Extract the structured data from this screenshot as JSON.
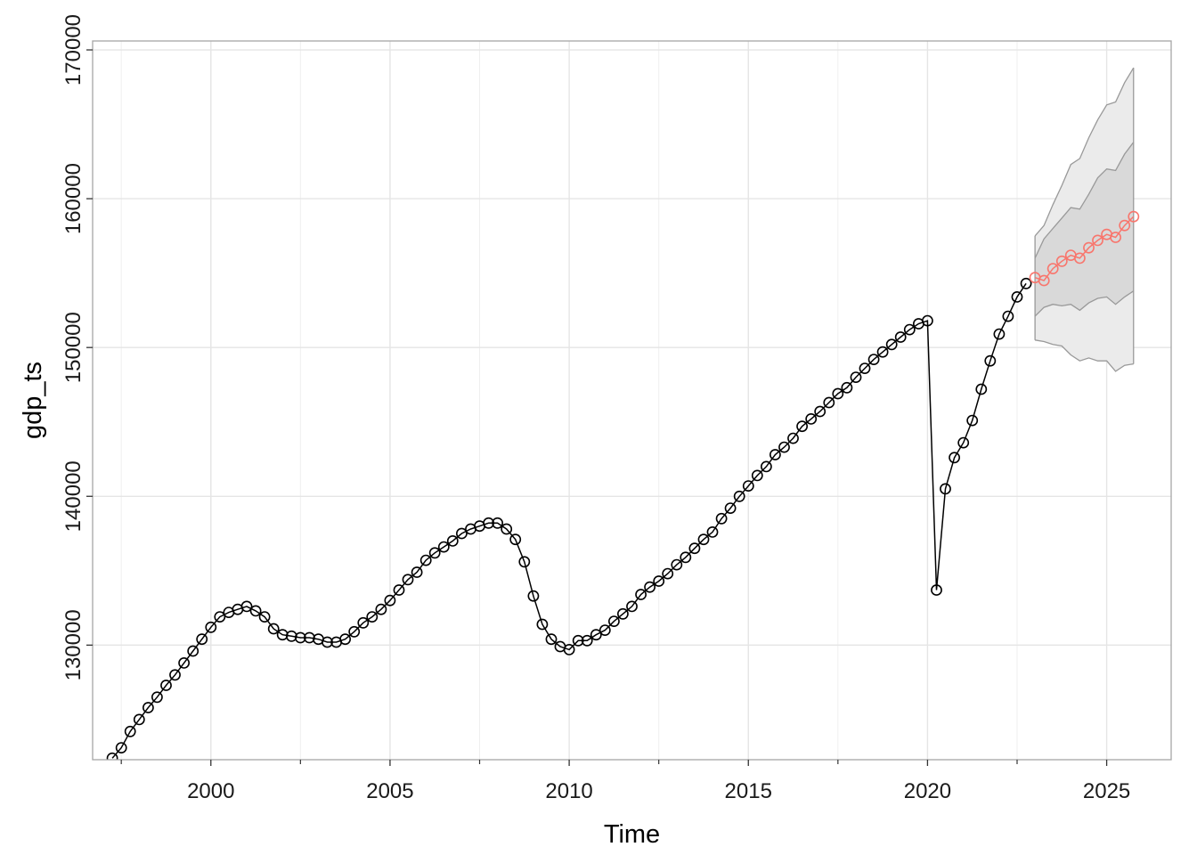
{
  "chart_data": {
    "type": "line",
    "xlabel": "Time",
    "ylabel": "gdp_ts",
    "xlim": [
      1996.7,
      2026.8
    ],
    "ylim": [
      122300,
      170600
    ],
    "x_ticks": [
      2000,
      2005,
      2010,
      2015,
      2020,
      2025
    ],
    "x_tick_labels": [
      "2000",
      "2005",
      "2010",
      "2015",
      "2020",
      "2025"
    ],
    "y_ticks": [
      130000,
      140000,
      150000,
      160000,
      170000
    ],
    "y_tick_labels": [
      "130000",
      "140000",
      "150000",
      "160000",
      "170000"
    ],
    "grid": true,
    "colors": {
      "observed": "#000000",
      "forecast": "#F8766D",
      "band80": "#D9D9D9",
      "band95": "#EBEBEB",
      "band_edge": "#999999",
      "gridline": "#E5E5E5",
      "panel_border": "#A6A6A6"
    },
    "series": [
      {
        "x_start": 1997.25,
        "step": 0.25,
        "values": [
          122400,
          123100,
          124200,
          125000,
          125800,
          126500,
          127300,
          128000,
          128800,
          129600,
          130400,
          131200,
          131900,
          132200,
          132400,
          132600,
          132300,
          131900,
          131100,
          130700,
          130600,
          130500,
          130500,
          130400,
          130200,
          130200,
          130400,
          130900,
          131500,
          131900,
          132400,
          133000,
          133700,
          134400,
          134900,
          135700,
          136200,
          136600,
          137000,
          137500,
          137800,
          138000,
          138200,
          138200,
          137800,
          137100,
          135600,
          133300,
          131400,
          130400,
          129900,
          129700,
          130300,
          130300,
          130700,
          131000,
          131600,
          132100,
          132600,
          133400,
          133900,
          134300,
          134800,
          135400,
          135900,
          136500,
          137100,
          137600,
          138500,
          139200,
          140000,
          140700,
          141400,
          142000,
          142800,
          143300,
          143900,
          144700,
          145200,
          145700,
          146300,
          146900,
          147300,
          148000,
          148600,
          149200,
          149700,
          150200,
          150700,
          151200,
          151600,
          151800,
          133700,
          140500,
          142600,
          143600,
          145100,
          147200,
          149100,
          150900,
          152100,
          153400,
          154300
        ]
      },
      {
        "x_start": 2023.0,
        "step": 0.25,
        "values": [
          154700,
          154500,
          155300,
          155800,
          156200,
          156000,
          156700,
          157200,
          157600,
          157400,
          158200,
          158800
        ],
        "lo80": [
          152100,
          152700,
          152900,
          152800,
          152900,
          152500,
          153000,
          153300,
          153400,
          152900,
          153400,
          153800
        ],
        "hi80": [
          156000,
          157300,
          158000,
          158700,
          159400,
          159300,
          160300,
          161400,
          162000,
          161900,
          163000,
          163800
        ],
        "lo95": [
          150500,
          150400,
          150200,
          150100,
          149500,
          149100,
          149300,
          149100,
          149100,
          148400,
          148800,
          148900
        ],
        "hi95": [
          157500,
          158200,
          159600,
          160900,
          162300,
          162700,
          164100,
          165300,
          166300,
          166500,
          167800,
          168800
        ]
      }
    ]
  }
}
